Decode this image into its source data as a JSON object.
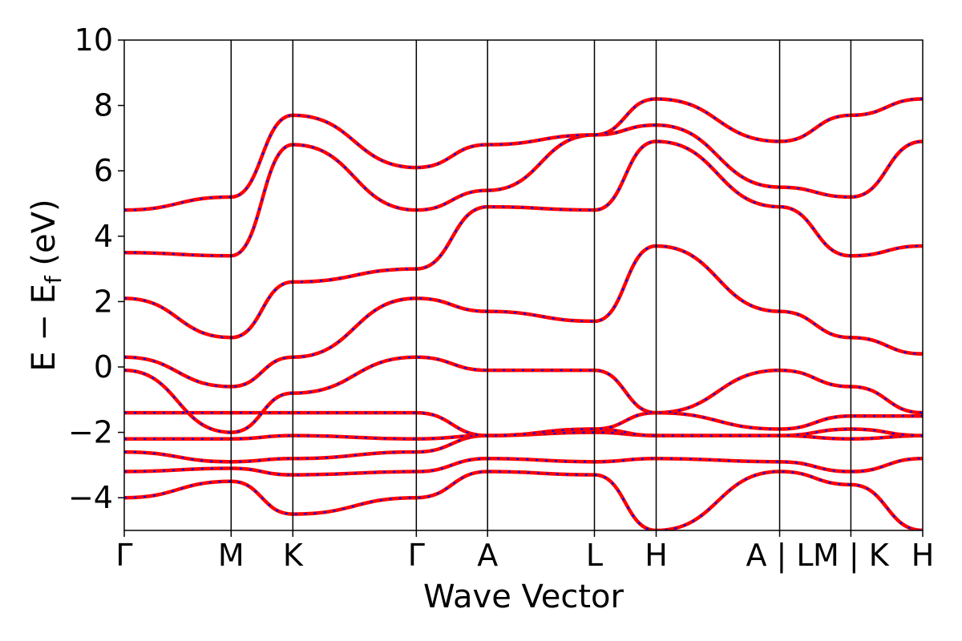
{
  "chart_data": {
    "type": "line",
    "xlabel": "Wave Vector",
    "ylabel": "E − E",
    "ylabel_sub": "f",
    "ylabel_unit": " (eV)",
    "ylim": [
      -5,
      10
    ],
    "yticks": [
      -4,
      -2,
      0,
      2,
      4,
      6,
      8,
      10
    ],
    "xlim": [
      0,
      13.45
    ],
    "kpoint_labels": [
      "Γ",
      "M",
      "K",
      "Γ",
      "A",
      "L",
      "H",
      "A | L",
      "M | K",
      "H"
    ],
    "kpoint_positions": [
      0,
      1.8,
      2.84,
      4.92,
      6.12,
      7.92,
      8.96,
      11.04,
      12.24,
      13.45
    ],
    "colors": {
      "dft": "#ff0000",
      "wannier": "#0000ff"
    },
    "bands": [
      {
        "name": "band-01",
        "x": [
          0,
          1.8,
          2.84,
          4.92,
          6.12,
          7.92,
          8.96,
          11.04,
          12.24,
          13.45
        ],
        "y": [
          -4.0,
          -3.5,
          -4.5,
          -4.0,
          -3.2,
          -3.3,
          -5.0,
          -3.2,
          -3.6,
          -5.0
        ]
      },
      {
        "name": "band-02",
        "x": [
          0,
          1.8,
          2.84,
          4.92,
          6.12,
          7.92,
          8.96,
          11.04,
          12.24,
          13.45
        ],
        "y": [
          -3.2,
          -3.1,
          -3.3,
          -3.2,
          -2.8,
          -2.9,
          -2.8,
          -2.9,
          -3.2,
          -2.8
        ]
      },
      {
        "name": "band-03",
        "x": [
          0,
          1.8,
          2.84,
          4.92,
          6.12,
          7.92,
          8.96,
          11.04,
          12.24,
          13.45
        ],
        "y": [
          -2.6,
          -2.9,
          -2.8,
          -2.6,
          -2.1,
          -2.0,
          -2.1,
          -2.1,
          -2.2,
          -2.1
        ]
      },
      {
        "name": "band-04",
        "x": [
          0,
          1.8,
          2.84,
          4.92,
          6.12,
          7.92,
          8.96,
          11.04,
          12.24,
          13.45
        ],
        "y": [
          -2.2,
          -2.2,
          -2.1,
          -2.2,
          -2.1,
          -1.9,
          -2.1,
          -2.1,
          -1.9,
          -2.1
        ]
      },
      {
        "name": "band-05",
        "x": [
          0,
          1.8,
          2.84,
          4.92,
          6.12,
          7.92,
          8.96,
          11.04,
          12.24,
          13.45
        ],
        "y": [
          -1.4,
          -1.4,
          -1.4,
          -1.4,
          -2.1,
          -1.9,
          -1.4,
          -1.9,
          -1.5,
          -1.5
        ]
      },
      {
        "name": "band-06",
        "x": [
          0,
          1.8,
          2.84,
          4.92,
          6.12,
          7.92,
          8.96,
          11.04,
          12.24,
          13.45
        ],
        "y": [
          -0.1,
          -2.0,
          -0.8,
          0.3,
          -0.1,
          -0.1,
          -1.4,
          -0.1,
          -0.6,
          -1.4
        ]
      },
      {
        "name": "band-07",
        "x": [
          0,
          1.8,
          2.84,
          4.92,
          6.12,
          7.92,
          8.96,
          11.04,
          12.24,
          13.45
        ],
        "y": [
          0.3,
          -0.6,
          0.3,
          2.1,
          1.7,
          1.4,
          3.7,
          1.7,
          0.9,
          0.4
        ]
      },
      {
        "name": "band-08",
        "x": [
          0,
          1.8,
          2.84,
          4.92,
          6.12,
          7.92,
          8.96,
          11.04,
          12.24,
          13.45
        ],
        "y": [
          2.1,
          0.9,
          2.6,
          3.0,
          4.9,
          4.8,
          6.9,
          4.9,
          3.4,
          3.7
        ]
      },
      {
        "name": "band-09",
        "x": [
          0,
          1.8,
          2.84,
          4.92,
          6.12,
          7.92,
          8.96,
          11.04,
          12.24,
          13.45
        ],
        "y": [
          3.5,
          3.4,
          6.8,
          4.8,
          5.4,
          7.1,
          7.4,
          5.5,
          5.2,
          6.9
        ]
      },
      {
        "name": "band-10",
        "x": [
          0,
          1.8,
          2.84,
          4.92,
          6.12,
          7.92,
          8.96,
          11.04,
          12.24,
          13.45
        ],
        "y": [
          4.8,
          5.2,
          7.7,
          6.1,
          6.8,
          7.1,
          8.2,
          6.9,
          7.7,
          8.2
        ]
      }
    ]
  }
}
